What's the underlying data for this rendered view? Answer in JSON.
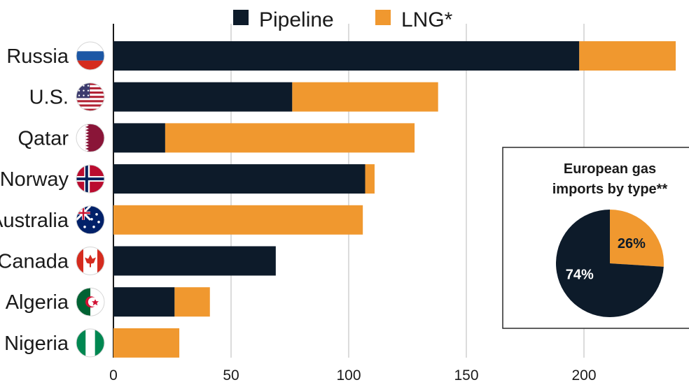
{
  "chart_data": [
    {
      "type": "bar",
      "orientation": "horizontal",
      "stacked": true,
      "categories": [
        "Russia",
        "U.S.",
        "Qatar",
        "Norway",
        "Australia",
        "Canada",
        "Algeria",
        "Nigeria"
      ],
      "series": [
        {
          "name": "Pipeline",
          "color": "#0d1b2a",
          "values": [
            198,
            76,
            22,
            107,
            0,
            69,
            26,
            0
          ]
        },
        {
          "name": "LNG*",
          "color": "#f0982f",
          "values": [
            41,
            62,
            106,
            4,
            106,
            0,
            15,
            28
          ]
        }
      ],
      "xticks": [
        0,
        50,
        100,
        150,
        200
      ],
      "xlim": [
        0,
        240
      ],
      "grid": "vertical",
      "legend": "top-center"
    },
    {
      "type": "pie",
      "title": "European gas imports by type**",
      "title_lines": [
        "European gas",
        "imports by type**"
      ],
      "slices": [
        {
          "label": "26%",
          "value": 26,
          "color": "#f0982f"
        },
        {
          "label": "74%",
          "value": 74,
          "color": "#0d1b2a"
        }
      ]
    }
  ],
  "flags": [
    "russia-flag-icon",
    "us-flag-icon",
    "qatar-flag-icon",
    "norway-flag-icon",
    "australia-flag-icon",
    "canada-flag-icon",
    "algeria-flag-icon",
    "nigeria-flag-icon"
  ],
  "colors": {
    "pipeline": "#0d1b2a",
    "lng": "#f0982f",
    "grid": "#c8c8c8",
    "axis": "#1a1a1a"
  }
}
